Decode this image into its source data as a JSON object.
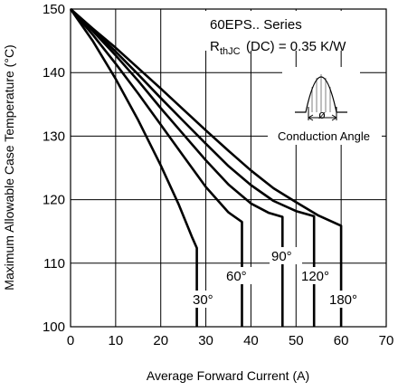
{
  "chart_data": {
    "type": "line",
    "xlabel": "Average Forward Current (A)",
    "ylabel": "Maximum Allowable Case Temperature (°C)",
    "xlim": [
      0,
      70
    ],
    "ylim": [
      100,
      150
    ],
    "x_ticks": [
      "0",
      "10",
      "20",
      "30",
      "40",
      "50",
      "60",
      "70"
    ],
    "y_ticks": [
      "100",
      "110",
      "120",
      "130",
      "140",
      "150"
    ],
    "grid": true,
    "series": [
      {
        "name": "30°",
        "points": [
          [
            0,
            150
          ],
          [
            5,
            144.9
          ],
          [
            10,
            139
          ],
          [
            15,
            132.5
          ],
          [
            20,
            125.4
          ],
          [
            24,
            119.2
          ],
          [
            27,
            114
          ],
          [
            28,
            112.4
          ],
          [
            28,
            100
          ]
        ]
      },
      {
        "name": "60°",
        "points": [
          [
            0,
            150
          ],
          [
            5,
            145.9
          ],
          [
            10,
            141.4
          ],
          [
            15,
            136.7
          ],
          [
            20,
            131.8
          ],
          [
            25,
            126.9
          ],
          [
            30,
            122
          ],
          [
            35,
            118
          ],
          [
            38,
            116.5
          ],
          [
            38,
            100
          ]
        ]
      },
      {
        "name": "90°",
        "points": [
          [
            0,
            150
          ],
          [
            5,
            146.5
          ],
          [
            10,
            142.7
          ],
          [
            15,
            138.7
          ],
          [
            20,
            134.4
          ],
          [
            25,
            130.3
          ],
          [
            30,
            126.2
          ],
          [
            35,
            122.4
          ],
          [
            40,
            119.4
          ],
          [
            44,
            117.9
          ],
          [
            47,
            117.3
          ],
          [
            47,
            100
          ]
        ]
      },
      {
        "name": "120°",
        "points": [
          [
            0,
            150
          ],
          [
            5,
            146.7
          ],
          [
            10,
            143.3
          ],
          [
            15,
            139.7
          ],
          [
            20,
            136
          ],
          [
            25,
            132.4
          ],
          [
            30,
            128.8
          ],
          [
            35,
            125.3
          ],
          [
            40,
            122.3
          ],
          [
            45,
            119.8
          ],
          [
            50,
            118.2
          ],
          [
            54,
            117.4
          ],
          [
            54,
            100
          ]
        ]
      },
      {
        "name": "180°",
        "points": [
          [
            0,
            150
          ],
          [
            5,
            146.9
          ],
          [
            10,
            143.9
          ],
          [
            15,
            140.7
          ],
          [
            20,
            137.5
          ],
          [
            25,
            134.2
          ],
          [
            30,
            130.9
          ],
          [
            35,
            127.7
          ],
          [
            40,
            124.6
          ],
          [
            45,
            121.8
          ],
          [
            50,
            119.6
          ],
          [
            55,
            117.5
          ],
          [
            60,
            115.9
          ],
          [
            60,
            100
          ]
        ]
      }
    ],
    "annotations": {
      "series_title": "60EPS.. Series",
      "rth_symbol": "R",
      "rth_subscript": "thJC",
      "rth_condition": "(DC) = 0.35 K/W",
      "conduction_symbol": "ø",
      "conduction_label": "Conduction Angle"
    }
  }
}
